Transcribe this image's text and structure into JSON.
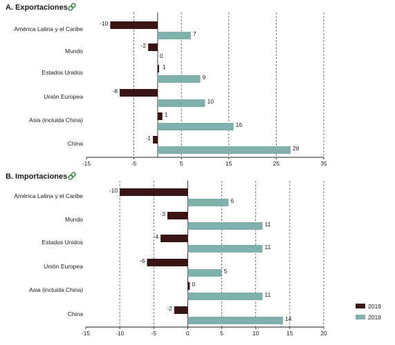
{
  "colors": {
    "series_2019": "#3b1414",
    "series_2018": "#7fb0ac",
    "grid": "#555555",
    "axis": "#222222",
    "link_icon": "#3f8a4a"
  },
  "chart_data": [
    {
      "type": "bar",
      "orientation": "horizontal",
      "title": "A. Exportaciones",
      "categories": [
        "América Latina y el Caribe",
        "Mundo",
        "Estados Unidos",
        "Unión Europea",
        "Asia (incluida China)",
        "China"
      ],
      "series": [
        {
          "name": "2019",
          "values": [
            -10,
            -2,
            0.3,
            -8,
            1,
            -1
          ],
          "labels": [
            "-10",
            "-2",
            "",
            "-8",
            "1",
            "-1"
          ]
        },
        {
          "name": "2018",
          "values": [
            7,
            0,
            9,
            10,
            16,
            28
          ],
          "labels": [
            "7",
            "0",
            "9",
            "10",
            "16",
            "28"
          ]
        }
      ],
      "extra_labels": [
        {
          "category_index": 2,
          "text": "1"
        }
      ],
      "xlim": [
        -15,
        35
      ],
      "xticks": [
        -15,
        -5,
        5,
        15,
        25,
        35
      ],
      "grid": true
    },
    {
      "type": "bar",
      "orientation": "horizontal",
      "title": "B. Importaciones",
      "categories": [
        "América Latina y el Caribe",
        "Mundo",
        "Estados Unidos",
        "Unión Europea",
        "Asia (incluida China)",
        "China"
      ],
      "series": [
        {
          "name": "2019",
          "values": [
            -10,
            -3,
            -4,
            -6,
            0.3,
            -2
          ],
          "labels": [
            "-10",
            "-3",
            "-4",
            "-6",
            "0",
            "-2"
          ]
        },
        {
          "name": "2018",
          "values": [
            6,
            11,
            11,
            5,
            11,
            14
          ],
          "labels": [
            "6",
            "11",
            "11",
            "5",
            "11",
            "14"
          ]
        }
      ],
      "xlim": [
        -15,
        20
      ],
      "xticks": [
        -15,
        -10,
        -5,
        0,
        5,
        10,
        15,
        20
      ],
      "grid": true,
      "legend": "bottom-right"
    }
  ],
  "legend": {
    "items": [
      {
        "name": "2019"
      },
      {
        "name": "2018"
      }
    ]
  }
}
